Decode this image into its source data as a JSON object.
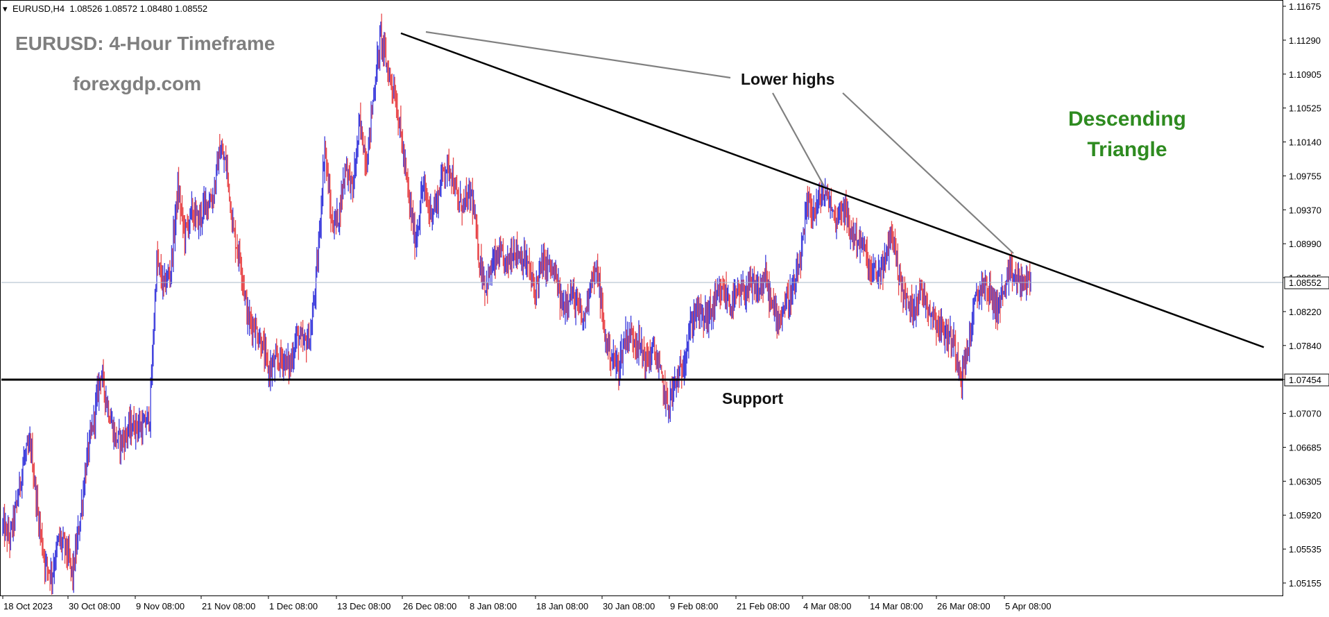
{
  "header": {
    "symbol_info": "EURUSD,H4  1.08526 1.08572 1.08480 1.08552"
  },
  "watermark": {
    "title": "EURUSD: 4-Hour Timeframe",
    "site": "forexgdp.com"
  },
  "annotations": {
    "lower_highs": "Lower highs",
    "support": "Support",
    "pattern_line1": "Descending",
    "pattern_line2": "Triangle"
  },
  "colors": {
    "bull": "#3b3bdc",
    "bear": "#e8474a",
    "pattern_text": "#2e8b20",
    "watermark": "#7f7f7f",
    "price_line": "#a9b8c9"
  },
  "chart_data": {
    "type": "candlestick",
    "symbol": "EURUSD",
    "timeframe": "H4",
    "ylim": [
      1.0495,
      1.11675
    ],
    "y_ticks": [
      "1.11675",
      "1.11290",
      "1.10905",
      "1.10525",
      "1.10140",
      "1.09755",
      "1.09370",
      "1.08990",
      "1.08605",
      "1.08220",
      "1.07840",
      "1.07454",
      "1.07070",
      "1.06685",
      "1.06305",
      "1.05920",
      "1.05535",
      "1.05155"
    ],
    "x_ticks": [
      "18 Oct 2023",
      "30 Oct 08:00",
      "9 Nov 08:00",
      "21 Nov 08:00",
      "1 Dec 08:00",
      "13 Dec 08:00",
      "26 Dec 08:00",
      "8 Jan 08:00",
      "18 Jan 08:00",
      "30 Jan 08:00",
      "9 Feb 08:00",
      "21 Feb 08:00",
      "4 Mar 08:00",
      "14 Mar 08:00",
      "26 Mar 08:00",
      "5 Apr 08:00"
    ],
    "current_price": "1.08552",
    "support_level": "1.07454",
    "support_price": 1.07454,
    "trendline_start": {
      "x": "26 Dec 2023",
      "y": 1.1137
    },
    "trendline_end": {
      "x": "30 Apr 2024",
      "y": 1.0782
    },
    "close_path": [
      [
        "18 Oct 2023",
        1.058
      ],
      [
        "19 Oct",
        1.0565
      ],
      [
        "20 Oct",
        1.0605
      ],
      [
        "22 Oct",
        1.0655
      ],
      [
        "23 Oct",
        1.067
      ],
      [
        "24 Oct",
        1.0595
      ],
      [
        "25 Oct",
        1.054
      ],
      [
        "26 Oct",
        1.0525
      ],
      [
        "27 Oct",
        1.0565
      ],
      [
        "29 Oct",
        1.0555
      ],
      [
        "30 Oct",
        1.0525
      ],
      [
        "31 Oct",
        1.0585
      ],
      [
        "1 Nov",
        1.0655
      ],
      [
        "2 Nov",
        1.07
      ],
      [
        "3 Nov",
        1.0755
      ],
      [
        "5 Nov",
        1.0715
      ],
      [
        "6 Nov",
        1.068
      ],
      [
        "7 Nov",
        1.0675
      ],
      [
        "8 Nov",
        1.069
      ],
      [
        "9 Nov",
        1.0695
      ],
      [
        "10 Nov",
        1.069
      ],
      [
        "12 Nov",
        1.0705
      ],
      [
        "13 Nov",
        1.088
      ],
      [
        "14 Nov",
        1.085
      ],
      [
        "15 Nov",
        1.087
      ],
      [
        "16 Nov",
        1.096
      ],
      [
        "17 Nov",
        1.091
      ],
      [
        "19 Nov",
        1.0935
      ],
      [
        "20 Nov",
        1.0925
      ],
      [
        "21 Nov",
        1.0945
      ],
      [
        "22 Nov",
        1.095
      ],
      [
        "23 Nov",
        1.1005
      ],
      [
        "24 Nov",
        1.0985
      ],
      [
        "26 Nov",
        1.091
      ],
      [
        "27 Nov",
        1.088
      ],
      [
        "28 Nov",
        1.0815
      ],
      [
        "29 Nov",
        1.0805
      ],
      [
        "30 Nov",
        1.0785
      ],
      [
        "1 Dec",
        1.0755
      ],
      [
        "3 Dec",
        1.0765
      ],
      [
        "4 Dec",
        1.077
      ],
      [
        "5 Dec",
        1.076
      ],
      [
        "6 Dec",
        1.0795
      ],
      [
        "7 Dec",
        1.0785
      ],
      [
        "8 Dec",
        1.0795
      ],
      [
        "10 Dec",
        1.088
      ],
      [
        "11 Dec",
        1.101
      ],
      [
        "12 Dec",
        1.092
      ],
      [
        "13 Dec",
        1.093
      ],
      [
        "14 Dec",
        1.099
      ],
      [
        "15 Dec",
        1.096
      ],
      [
        "17 Dec",
        1.1035
      ],
      [
        "18 Dec",
        1.099
      ],
      [
        "19 Dec",
        1.107
      ],
      [
        "20 Dec",
        1.1135
      ],
      [
        "21 Dec",
        1.1095
      ],
      [
        "22 Dec",
        1.107
      ],
      [
        "24 Dec",
        1.1015
      ],
      [
        "25 Dec",
        1.095
      ],
      [
        "26 Dec",
        1.09
      ],
      [
        "27 Dec",
        1.0965
      ],
      [
        "28 Dec",
        1.0935
      ],
      [
        "29 Dec",
        1.0945
      ],
      [
        "31 Dec",
        1.0985
      ],
      [
        "1 Jan",
        1.0985
      ],
      [
        "2 Jan",
        1.0945
      ],
      [
        "3 Jan",
        1.0945
      ],
      [
        "4 Jan",
        1.0955
      ],
      [
        "5 Jan",
        1.0885
      ],
      [
        "7 Jan",
        1.085
      ],
      [
        "8 Jan",
        1.0875
      ],
      [
        "9 Jan",
        1.0885
      ],
      [
        "10 Jan",
        1.0875
      ],
      [
        "11 Jan",
        1.0895
      ],
      [
        "12 Jan",
        1.0885
      ],
      [
        "14 Jan",
        1.0875
      ],
      [
        "15 Jan",
        1.0845
      ],
      [
        "16 Jan",
        1.0875
      ],
      [
        "17 Jan",
        1.0875
      ],
      [
        "18 Jan",
        1.086
      ],
      [
        "19 Jan",
        1.0825
      ],
      [
        "21 Jan",
        1.0845
      ],
      [
        "22 Jan",
        1.083
      ],
      [
        "23 Jan",
        1.081
      ],
      [
        "24 Jan",
        1.086
      ],
      [
        "25 Jan",
        1.0865
      ],
      [
        "26 Jan",
        1.0795
      ],
      [
        "28 Jan",
        1.077
      ],
      [
        "29 Jan",
        1.076
      ],
      [
        "30 Jan",
        1.0795
      ],
      [
        "31 Jan",
        1.0795
      ],
      [
        "1 Feb",
        1.0785
      ],
      [
        "2 Feb",
        1.0765
      ],
      [
        "4 Feb",
        1.078
      ],
      [
        "5 Feb",
        1.075
      ],
      [
        "6 Feb",
        1.0715
      ],
      [
        "7 Feb",
        1.074
      ],
      [
        "8 Feb",
        1.0755
      ],
      [
        "9 Feb",
        1.0795
      ],
      [
        "11 Feb",
        1.0825
      ],
      [
        "12 Feb",
        1.0815
      ],
      [
        "13 Feb",
        1.082
      ],
      [
        "14 Feb",
        1.0835
      ],
      [
        "15 Feb",
        1.0845
      ],
      [
        "16 Feb",
        1.083
      ],
      [
        "18 Feb",
        1.084
      ],
      [
        "19 Feb",
        1.0845
      ],
      [
        "20 Feb",
        1.085
      ],
      [
        "21 Feb",
        1.0845
      ],
      [
        "22 Feb",
        1.086
      ],
      [
        "23 Feb",
        1.0825
      ],
      [
        "25 Feb",
        1.0815
      ],
      [
        "26 Feb",
        1.0835
      ],
      [
        "27 Feb",
        1.0845
      ],
      [
        "28 Feb",
        1.088
      ],
      [
        "29 Feb",
        1.0945
      ],
      [
        "1 Mar",
        1.0935
      ],
      [
        "3 Mar",
        1.0955
      ],
      [
        "4 Mar",
        1.095
      ],
      [
        "5 Mar",
        1.0925
      ],
      [
        "6 Mar",
        1.0945
      ],
      [
        "7 Mar",
        1.0915
      ],
      [
        "8 Mar",
        1.0905
      ],
      [
        "10 Mar",
        1.0895
      ],
      [
        "11 Mar",
        1.0865
      ],
      [
        "12 Mar",
        1.0865
      ],
      [
        "13 Mar",
        1.0875
      ],
      [
        "14 Mar",
        1.0915
      ],
      [
        "15 Mar",
        1.0865
      ],
      [
        "17 Mar",
        1.0835
      ],
      [
        "18 Mar",
        1.0825
      ],
      [
        "19 Mar",
        1.0845
      ],
      [
        "20 Mar",
        1.0835
      ],
      [
        "21 Mar",
        1.0815
      ],
      [
        "22 Mar",
        1.0805
      ],
      [
        "24 Mar",
        1.0795
      ],
      [
        "25 Mar",
        1.0785
      ],
      [
        "26 Mar",
        1.075
      ],
      [
        "27 Mar",
        1.0785
      ],
      [
        "28 Mar",
        1.0835
      ],
      [
        "29 Mar",
        1.0855
      ],
      [
        "31 Mar",
        1.0845
      ],
      [
        "1 Apr",
        1.0825
      ],
      [
        "2 Apr",
        1.0845
      ],
      [
        "3 Apr",
        1.0865
      ],
      [
        "4 Apr",
        1.0858
      ],
      [
        "5 Apr",
        1.0855
      ],
      [
        "6 Apr",
        1.0855
      ]
    ]
  }
}
